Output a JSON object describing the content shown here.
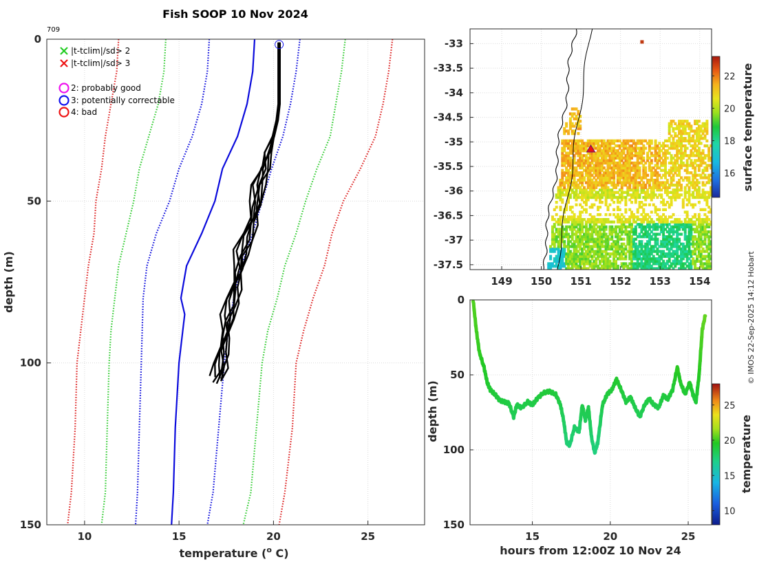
{
  "chart_data": [
    {
      "type": "line",
      "title": "Fish SOOP 10 Nov 2024",
      "annotation": "709",
      "xlabel": "temperature (",
      "xlabel_sup": "o",
      "xlabel_tail": " C)",
      "ylabel": "depth (m)",
      "xlim": [
        8,
        28
      ],
      "ylim": [
        150,
        0
      ],
      "xticks": [
        10,
        15,
        20,
        25
      ],
      "yticks": [
        0,
        50,
        100,
        150
      ],
      "legend": [
        {
          "label": "|t-tclim|/sd> 2",
          "marker": "x",
          "color": "#22cc22"
        },
        {
          "label": "|t-tclim|/sd> 3",
          "marker": "x",
          "color": "#ee1111"
        },
        {
          "label": "2: probably good",
          "marker": "o",
          "color": "#ee11ee"
        },
        {
          "label": "3: potentially correctable",
          "marker": "o",
          "color": "#1111ee"
        },
        {
          "label": "4: bad",
          "marker": "o",
          "color": "#ee1111"
        }
      ],
      "series": [
        {
          "name": "climatology mean",
          "style": "solid",
          "color": "#0a0adc",
          "points": [
            [
              19.0,
              0
            ],
            [
              18.9,
              10
            ],
            [
              18.6,
              20
            ],
            [
              18.1,
              30
            ],
            [
              17.3,
              40
            ],
            [
              16.9,
              50
            ],
            [
              16.2,
              60
            ],
            [
              15.4,
              70
            ],
            [
              15.1,
              80
            ],
            [
              15.3,
              85
            ],
            [
              15.2,
              90
            ],
            [
              15.0,
              100
            ],
            [
              14.8,
              120
            ],
            [
              14.7,
              140
            ],
            [
              14.6,
              150
            ]
          ]
        },
        {
          "name": "mean - 1 sd",
          "style": "dotted",
          "color": "#0a0adc",
          "points": [
            [
              16.6,
              0
            ],
            [
              16.5,
              10
            ],
            [
              16.2,
              20
            ],
            [
              15.7,
              30
            ],
            [
              15.0,
              40
            ],
            [
              14.5,
              50
            ],
            [
              13.8,
              60
            ],
            [
              13.3,
              70
            ],
            [
              13.1,
              80
            ],
            [
              13.0,
              100
            ],
            [
              12.9,
              120
            ],
            [
              12.8,
              140
            ],
            [
              12.7,
              150
            ]
          ]
        },
        {
          "name": "mean + 1 sd",
          "style": "dotted",
          "color": "#0a0adc",
          "points": [
            [
              21.4,
              0
            ],
            [
              21.2,
              10
            ],
            [
              20.9,
              20
            ],
            [
              20.5,
              30
            ],
            [
              19.9,
              40
            ],
            [
              19.4,
              50
            ],
            [
              18.9,
              60
            ],
            [
              18.3,
              70
            ],
            [
              17.9,
              80
            ],
            [
              17.6,
              90
            ],
            [
              17.4,
              100
            ],
            [
              17.1,
              120
            ],
            [
              16.8,
              140
            ],
            [
              16.5,
              150
            ]
          ]
        },
        {
          "name": "mean - 2 sd",
          "style": "dotted",
          "color": "#33cc33",
          "points": [
            [
              14.3,
              0
            ],
            [
              14.2,
              10
            ],
            [
              13.9,
              20
            ],
            [
              13.4,
              30
            ],
            [
              12.9,
              40
            ],
            [
              12.6,
              50
            ],
            [
              12.2,
              60
            ],
            [
              11.8,
              70
            ],
            [
              11.6,
              80
            ],
            [
              11.4,
              90
            ],
            [
              11.3,
              100
            ],
            [
              11.2,
              120
            ],
            [
              11.1,
              140
            ],
            [
              10.9,
              150
            ]
          ]
        },
        {
          "name": "mean + 2 sd",
          "style": "dotted",
          "color": "#33cc33",
          "points": [
            [
              23.8,
              0
            ],
            [
              23.6,
              10
            ],
            [
              23.3,
              20
            ],
            [
              23.0,
              30
            ],
            [
              22.3,
              40
            ],
            [
              21.7,
              50
            ],
            [
              21.2,
              60
            ],
            [
              20.6,
              70
            ],
            [
              20.2,
              80
            ],
            [
              19.7,
              90
            ],
            [
              19.4,
              100
            ],
            [
              19.1,
              120
            ],
            [
              18.8,
              140
            ],
            [
              18.4,
              150
            ]
          ]
        },
        {
          "name": "mean - 3 sd",
          "style": "dotted",
          "color": "#dd2222",
          "points": [
            [
              11.8,
              0
            ],
            [
              11.7,
              10
            ],
            [
              11.4,
              20
            ],
            [
              11.1,
              30
            ],
            [
              10.9,
              40
            ],
            [
              10.6,
              50
            ],
            [
              10.5,
              60
            ],
            [
              10.2,
              70
            ],
            [
              10.0,
              80
            ],
            [
              9.8,
              90
            ],
            [
              9.6,
              100
            ],
            [
              9.5,
              120
            ],
            [
              9.3,
              140
            ],
            [
              9.1,
              150
            ]
          ]
        },
        {
          "name": "mean + 3 sd",
          "style": "dotted",
          "color": "#dd2222",
          "points": [
            [
              26.3,
              0
            ],
            [
              26.1,
              10
            ],
            [
              25.8,
              20
            ],
            [
              25.4,
              30
            ],
            [
              24.6,
              40
            ],
            [
              23.7,
              50
            ],
            [
              23.1,
              60
            ],
            [
              22.7,
              70
            ],
            [
              22.1,
              80
            ],
            [
              21.6,
              90
            ],
            [
              21.2,
              100
            ],
            [
              21.0,
              120
            ],
            [
              20.6,
              140
            ],
            [
              20.3,
              150
            ]
          ]
        },
        {
          "name": "profiles",
          "style": "solid",
          "color": "#000000",
          "points": [
            [
              20.3,
              1
            ],
            [
              20.3,
              20
            ],
            [
              20.2,
              25
            ],
            [
              20.0,
              30
            ],
            [
              19.7,
              35
            ],
            [
              19.5,
              40
            ],
            [
              19.2,
              45
            ],
            [
              19.1,
              50
            ],
            [
              18.9,
              55
            ],
            [
              18.6,
              60
            ],
            [
              18.3,
              65
            ],
            [
              18.2,
              70
            ],
            [
              18.0,
              75
            ],
            [
              17.8,
              80
            ],
            [
              17.6,
              85
            ],
            [
              17.5,
              90
            ],
            [
              17.3,
              95
            ],
            [
              17.2,
              100
            ],
            [
              17.0,
              104
            ]
          ]
        }
      ],
      "flag_marker": {
        "temperature": 20.3,
        "depth": 1,
        "flag": 3
      }
    },
    {
      "type": "heatmap",
      "subtype": "map",
      "xlim": [
        148.2,
        154.3
      ],
      "ylim": [
        -37.6,
        -32.7
      ],
      "xticks": [
        149,
        150,
        151,
        152,
        153,
        154
      ],
      "yticks": [
        -33,
        -33.5,
        -34,
        -34.5,
        -35,
        -35.5,
        -36,
        -36.5,
        -37,
        -37.5
      ],
      "xtick_labels": [
        "149",
        "150",
        "151",
        "152",
        "153",
        "154"
      ],
      "ytick_labels": [
        "-33",
        "-33.5",
        "-34",
        "-34.5",
        "-35",
        "-35.5",
        "-36",
        "-36.5",
        "-37",
        "-37.5"
      ],
      "colorbar_label": "surface temperature",
      "colorbar_range": [
        14.5,
        23.2
      ],
      "colorbar_ticks": [
        16,
        18,
        20,
        22
      ],
      "colorbar_tick_labels": [
        "16",
        "18",
        "20",
        "22"
      ],
      "location_marker": {
        "lon": 151.25,
        "lat": -35.15
      }
    },
    {
      "type": "scatter",
      "xlabel": "hours from 12:00Z 10 Nov 24",
      "ylabel": "depth (m)",
      "xlim": [
        11.0,
        26.5
      ],
      "ylim": [
        150,
        0
      ],
      "xticks": [
        15,
        20,
        25
      ],
      "yticks": [
        0,
        50,
        100,
        150
      ],
      "colorbar_label": "temperature",
      "colorbar_range": [
        8,
        28
      ],
      "colorbar_ticks": [
        10,
        15,
        20,
        25
      ],
      "track": [
        [
          11.2,
          0,
          20.3
        ],
        [
          11.4,
          20,
          20.1
        ],
        [
          11.6,
          35,
          19.8
        ],
        [
          11.9,
          45,
          19.5
        ],
        [
          12.1,
          55,
          19.3
        ],
        [
          12.3,
          60,
          19.1
        ],
        [
          12.6,
          63,
          19.0
        ],
        [
          12.9,
          67,
          18.8
        ],
        [
          13.2,
          68,
          18.8
        ],
        [
          13.5,
          69,
          18.7
        ],
        [
          13.8,
          78,
          18.3
        ],
        [
          14.0,
          70,
          18.6
        ],
        [
          14.3,
          72,
          18.5
        ],
        [
          14.7,
          68,
          18.7
        ],
        [
          15.0,
          70,
          18.6
        ],
        [
          15.3,
          66,
          18.8
        ],
        [
          15.7,
          62,
          19.0
        ],
        [
          16.1,
          61,
          19.0
        ],
        [
          16.5,
          63,
          18.9
        ],
        [
          16.8,
          70,
          18.6
        ],
        [
          17.0,
          80,
          18.1
        ],
        [
          17.2,
          95,
          17.6
        ],
        [
          17.4,
          97,
          17.5
        ],
        [
          17.7,
          85,
          17.9
        ],
        [
          18.0,
          88,
          17.8
        ],
        [
          18.2,
          70,
          18.6
        ],
        [
          18.4,
          80,
          18.2
        ],
        [
          18.6,
          72,
          18.5
        ],
        [
          18.8,
          92,
          17.7
        ],
        [
          19.0,
          102,
          17.3
        ],
        [
          19.2,
          95,
          17.5
        ],
        [
          19.5,
          70,
          18.6
        ],
        [
          19.8,
          63,
          18.9
        ],
        [
          20.1,
          60,
          19.0
        ],
        [
          20.4,
          53,
          19.3
        ],
        [
          20.7,
          60,
          19.0
        ],
        [
          21.0,
          68,
          18.7
        ],
        [
          21.3,
          65,
          18.8
        ],
        [
          21.6,
          72,
          18.5
        ],
        [
          21.9,
          78,
          18.3
        ],
        [
          22.2,
          70,
          18.6
        ],
        [
          22.5,
          66,
          18.8
        ],
        [
          22.8,
          70,
          18.6
        ],
        [
          23.1,
          72,
          18.5
        ],
        [
          23.4,
          64,
          18.9
        ],
        [
          23.7,
          66,
          18.8
        ],
        [
          24.0,
          60,
          19.1
        ],
        [
          24.3,
          45,
          19.8
        ],
        [
          24.5,
          55,
          19.4
        ],
        [
          24.8,
          63,
          19.1
        ],
        [
          25.1,
          55,
          19.4
        ],
        [
          25.3,
          63,
          19.1
        ],
        [
          25.5,
          68,
          19.0
        ],
        [
          25.7,
          50,
          19.7
        ],
        [
          25.9,
          20,
          20.4
        ],
        [
          26.1,
          10,
          20.6
        ]
      ]
    }
  ],
  "side_text": "© IMOS 22-Sep-2025 14:12 Hobart",
  "colors": {
    "axis": "#262626",
    "grid": "#d9d9d9",
    "profile": "#000000",
    "map_land": "#ffffff"
  }
}
